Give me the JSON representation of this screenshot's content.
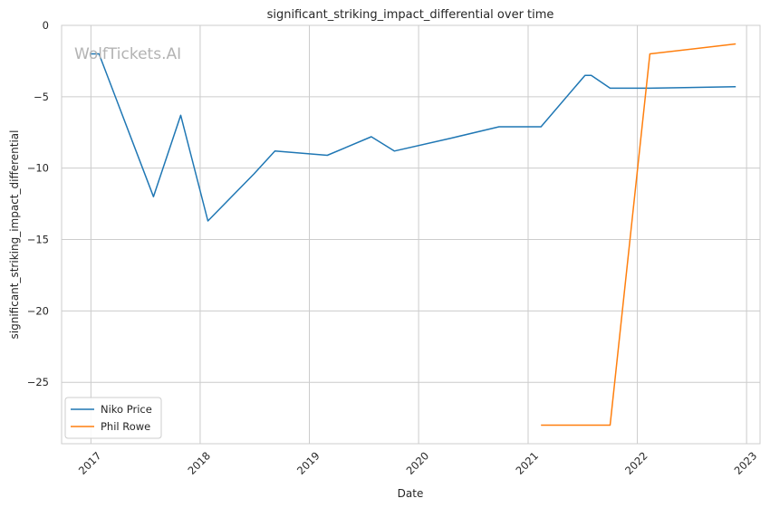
{
  "chart_data": {
    "type": "line",
    "title": "significant_striking_impact_differential over time",
    "xlabel": "Date",
    "ylabel": "significant_striking_impact_differential",
    "watermark": "WolfTickets.AI",
    "x_ticks": [
      "2017",
      "2018",
      "2019",
      "2020",
      "2021",
      "2022",
      "2023"
    ],
    "y_ticks": [
      0,
      -5,
      -10,
      -15,
      -20,
      -25
    ],
    "y_tick_labels": [
      "0",
      "−5",
      "−10",
      "−15",
      "−20",
      "−25"
    ],
    "xlim": [
      "2016-09-25",
      "2023-02-15"
    ],
    "ylim": [
      -29.3,
      0
    ],
    "grid": true,
    "legend_position": "lower-left",
    "series": [
      {
        "name": "Niko Price",
        "color": "#1f77b4",
        "points": [
          [
            "2016-12-31",
            -2.0
          ],
          [
            "2017-01-28",
            -2.0
          ],
          [
            "2017-07-29",
            -12.0
          ],
          [
            "2017-10-28",
            -6.3
          ],
          [
            "2018-01-27",
            -13.7
          ],
          [
            "2018-06-30",
            -10.4
          ],
          [
            "2018-09-08",
            -8.8
          ],
          [
            "2019-03-02",
            -9.1
          ],
          [
            "2019-07-27",
            -7.8
          ],
          [
            "2019-10-12",
            -8.8
          ],
          [
            "2020-04-18",
            -7.9
          ],
          [
            "2020-09-26",
            -7.1
          ],
          [
            "2021-02-13",
            -7.1
          ],
          [
            "2021-07-10",
            -3.5
          ],
          [
            "2021-07-31",
            -3.5
          ],
          [
            "2021-10-02",
            -4.4
          ],
          [
            "2022-02-12",
            -4.4
          ],
          [
            "2022-11-26",
            -4.3
          ]
        ]
      },
      {
        "name": "Phil Rowe",
        "color": "#ff7f0e",
        "points": [
          [
            "2021-02-13",
            -28.0
          ],
          [
            "2021-10-02",
            -28.0
          ],
          [
            "2022-02-12",
            -2.0
          ],
          [
            "2022-11-26",
            -1.3
          ]
        ]
      }
    ]
  }
}
